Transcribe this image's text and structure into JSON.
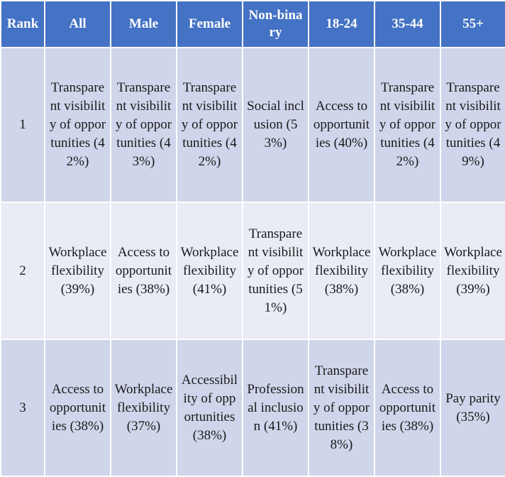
{
  "table": {
    "headers": [
      "Rank",
      "All",
      "Male",
      "Female",
      "Non-binary",
      "18-24",
      "35-44",
      "55+"
    ],
    "rows": [
      {
        "rank": "1",
        "cells": [
          "Transparent visibility of opportunities (42%)",
          "Transparent visibility of opportunities (43%)",
          "Transparent visibility of opportunities (42%)",
          "Social inclusion (53%)",
          "Access to opportunities (40%)",
          "Transparent visibility of opportunities (42%)",
          "Transparent visibility of opportunities (49%)"
        ]
      },
      {
        "rank": "2",
        "cells": [
          "Workplace flexibility (39%)",
          "Access to opportunities (38%)",
          "Workplace flexibility (41%)",
          "Transparent visibility of opportunities (51%)",
          "Workplace flexibility (38%)",
          "Workplace flexibility (38%)",
          "Workplace flexibility (39%)"
        ]
      },
      {
        "rank": "3",
        "cells": [
          "Access to opportunities (38%)",
          "Workplace flexibility (37%)",
          "Accessibility of opportunities (38%)",
          "Professional inclusion (41%)",
          "Transparent visibility of opportunities (38%)",
          "Access to opportunities (38%)",
          "Pay parity (35%)"
        ]
      }
    ]
  },
  "colors": {
    "header_bg": "#4472c4",
    "row_dark": "#cfd5ea",
    "row_light": "#e9ebf5"
  }
}
